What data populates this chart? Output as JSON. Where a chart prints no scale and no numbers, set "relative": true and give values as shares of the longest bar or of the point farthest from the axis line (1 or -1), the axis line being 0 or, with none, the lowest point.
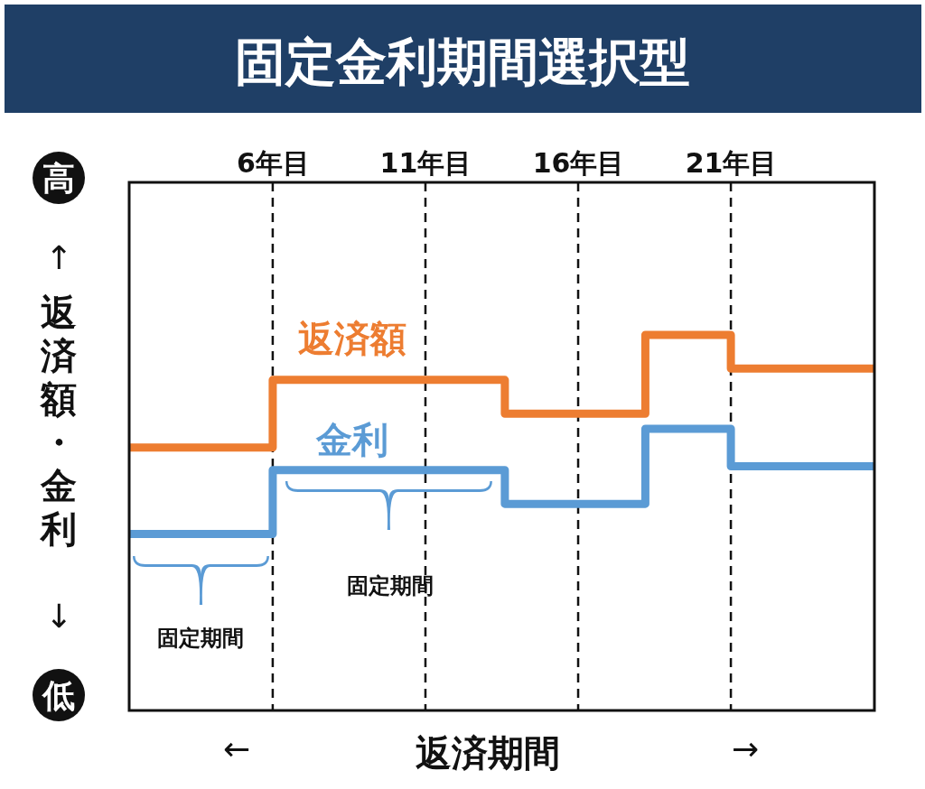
{
  "chart_data": {
    "type": "step",
    "title": "固定金利期間選択型",
    "xlabel": "返済期間",
    "ylabel": "返済額・金利",
    "relative": true,
    "x": [
      1.3,
      6,
      13.6,
      18.2,
      21,
      25.7
    ],
    "xlim": [
      1.3,
      25.7
    ],
    "xticks": [
      {
        "value": 6,
        "label": "6年目"
      },
      {
        "value": 11,
        "label": "11年目"
      },
      {
        "value": 16,
        "label": "16年目"
      },
      {
        "value": 21,
        "label": "21年目"
      }
    ],
    "grid": "x",
    "tick_labels": "x",
    "line_style": "solid",
    "marker": "none",
    "series": [
      {
        "name": "返済額",
        "color": "#ed7d31",
        "values": [
          0.7,
          0.88,
          0.79,
          1,
          0.91,
          0.91
        ]
      },
      {
        "name": "金利",
        "color": "#5b9bd5",
        "values": [
          0.47,
          0.64,
          0.55,
          0.75,
          0.65,
          0.65
        ]
      }
    ],
    "annotations": [
      "高",
      "低",
      "↑",
      "↓",
      "←",
      "→",
      "固定期間",
      "固定期間"
    ]
  }
}
